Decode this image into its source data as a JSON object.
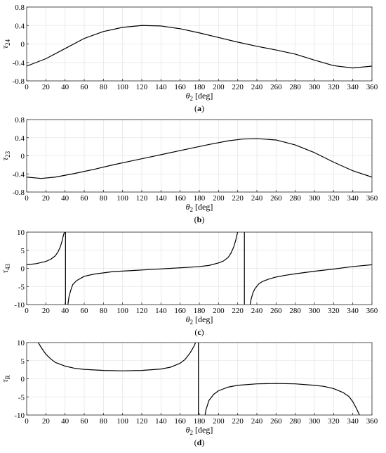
{
  "chart_data": [
    {
      "type": "line",
      "panel": "(a)",
      "panel_letter": "a",
      "xlabel_symbol": "θ",
      "xlabel_sub": "2",
      "xlabel_unit": " [deg]",
      "ylabel_symbol": "τ",
      "ylabel_sub": "24",
      "xlim": [
        0,
        360
      ],
      "ylim": [
        -0.8,
        0.8
      ],
      "xticks": [
        0,
        20,
        40,
        60,
        80,
        100,
        120,
        140,
        160,
        180,
        200,
        220,
        240,
        260,
        280,
        300,
        320,
        340,
        360
      ],
      "yticks": [
        -0.8,
        -0.4,
        0,
        0.4,
        0.8
      ],
      "ytick_labels": [
        "-0.8",
        "-0.4",
        "0",
        "0.4",
        "0.8"
      ],
      "grid": true,
      "series": [
        {
          "x": [
            0,
            20,
            40,
            60,
            80,
            100,
            120,
            140,
            160,
            180,
            200,
            220,
            240,
            260,
            280,
            300,
            320,
            340,
            360
          ],
          "y": [
            -0.48,
            -0.32,
            -0.1,
            0.12,
            0.27,
            0.36,
            0.4,
            0.39,
            0.33,
            0.24,
            0.14,
            0.04,
            -0.05,
            -0.13,
            -0.22,
            -0.35,
            -0.47,
            -0.52,
            -0.48
          ]
        }
      ]
    },
    {
      "type": "line",
      "panel": "(b)",
      "panel_letter": "b",
      "xlabel_symbol": "θ",
      "xlabel_sub": "2",
      "xlabel_unit": " [deg]",
      "ylabel_symbol": "τ",
      "ylabel_sub": "23",
      "xlim": [
        0,
        360
      ],
      "ylim": [
        -0.8,
        0.8
      ],
      "xticks": [
        0,
        20,
        40,
        60,
        80,
        100,
        120,
        140,
        160,
        180,
        200,
        220,
        240,
        260,
        280,
        300,
        320,
        340,
        360
      ],
      "yticks": [
        -0.8,
        -0.4,
        0,
        0.4,
        0.8
      ],
      "ytick_labels": [
        "-0.8",
        "-0.4",
        "0",
        "0.4",
        "0.8"
      ],
      "grid": true,
      "series": [
        {
          "x": [
            0,
            15,
            30,
            50,
            70,
            90,
            110,
            130,
            150,
            170,
            190,
            210,
            225,
            240,
            260,
            280,
            300,
            320,
            340,
            360
          ],
          "y": [
            -0.47,
            -0.5,
            -0.47,
            -0.39,
            -0.3,
            -0.2,
            -0.11,
            -0.02,
            0.07,
            0.16,
            0.25,
            0.33,
            0.37,
            0.38,
            0.35,
            0.24,
            0.07,
            -0.14,
            -0.33,
            -0.47
          ]
        }
      ]
    },
    {
      "type": "line",
      "panel": "(c)",
      "panel_letter": "c",
      "xlabel_symbol": "θ",
      "xlabel_sub": "2",
      "xlabel_unit": " [deg]",
      "ylabel_symbol": "τ",
      "ylabel_sub": "43",
      "xlim": [
        0,
        360
      ],
      "ylim": [
        -10,
        10
      ],
      "xticks": [
        0,
        20,
        40,
        60,
        80,
        100,
        120,
        140,
        160,
        180,
        200,
        220,
        240,
        260,
        280,
        300,
        320,
        340,
        360
      ],
      "yticks": [
        -10,
        -5,
        0,
        5,
        10
      ],
      "ytick_labels": [
        "-10",
        "-5",
        "0",
        "5",
        "10"
      ],
      "grid": true,
      "series": [
        {
          "x": [
            0,
            10,
            20,
            25,
            30,
            33,
            35,
            37,
            38,
            39,
            40
          ],
          "y": [
            1.0,
            1.3,
            1.9,
            2.5,
            3.5,
            4.7,
            5.9,
            7.6,
            8.8,
            9.7,
            10
          ]
        },
        {
          "x": [
            40.5,
            40.5
          ],
          "y": [
            10,
            -10
          ]
        },
        {
          "x": [
            43,
            44,
            46,
            48,
            52,
            60,
            70,
            90,
            110,
            130,
            150,
            170,
            180,
            190,
            200,
            205,
            210,
            213,
            216,
            218,
            219,
            220
          ],
          "y": [
            -10,
            -8.0,
            -6.0,
            -4.5,
            -3.4,
            -2.2,
            -1.6,
            -0.9,
            -0.6,
            -0.3,
            0.0,
            0.3,
            0.5,
            0.8,
            1.5,
            2.0,
            3.0,
            4.2,
            6.0,
            7.8,
            9.0,
            10
          ]
        },
        {
          "x": [
            227,
            227
          ],
          "y": [
            10,
            -10
          ]
        },
        {
          "x": [
            233,
            234,
            236,
            238,
            242,
            246,
            252,
            260,
            270,
            280,
            300,
            320,
            340,
            360
          ],
          "y": [
            -10,
            -8.5,
            -6.7,
            -5.6,
            -4.3,
            -3.6,
            -3.0,
            -2.4,
            -1.9,
            -1.5,
            -0.8,
            -0.2,
            0.5,
            1.0
          ]
        }
      ]
    },
    {
      "type": "line",
      "panel": "(d)",
      "panel_letter": "d",
      "xlabel_symbol": "θ",
      "xlabel_sub": "2",
      "xlabel_unit": " [deg]",
      "ylabel_symbol": "τ",
      "ylabel_sub": "R",
      "xlim": [
        0,
        360
      ],
      "ylim": [
        -10,
        10
      ],
      "xticks": [
        0,
        20,
        40,
        60,
        80,
        100,
        120,
        140,
        160,
        180,
        200,
        220,
        240,
        260,
        280,
        300,
        320,
        340,
        360
      ],
      "yticks": [
        -10,
        -5,
        0,
        5,
        10
      ],
      "ytick_labels": [
        "-10",
        "-5",
        "0",
        "5",
        "10"
      ],
      "grid": true,
      "series": [
        {
          "x": [
            12,
            16,
            20,
            25,
            30,
            40,
            50,
            60,
            80,
            100,
            120,
            140,
            150,
            160,
            165,
            170,
            173,
            175,
            176
          ],
          "y": [
            10,
            8.3,
            6.8,
            5.5,
            4.5,
            3.5,
            2.9,
            2.6,
            2.3,
            2.2,
            2.3,
            2.7,
            3.2,
            4.3,
            5.3,
            7.0,
            8.3,
            9.3,
            10
          ]
        },
        {
          "x": [
            179,
            179
          ],
          "y": [
            10,
            -10
          ]
        },
        {
          "x": [
            186,
            187,
            190,
            195,
            200,
            210,
            220,
            240,
            260,
            280,
            300,
            310,
            320,
            330,
            336,
            340,
            344,
            347
          ],
          "y": [
            -10,
            -8.5,
            -6.0,
            -4.3,
            -3.3,
            -2.3,
            -1.8,
            -1.4,
            -1.3,
            -1.4,
            -1.8,
            -2.1,
            -2.7,
            -3.8,
            -4.9,
            -6.3,
            -8.3,
            -10
          ]
        }
      ]
    }
  ]
}
